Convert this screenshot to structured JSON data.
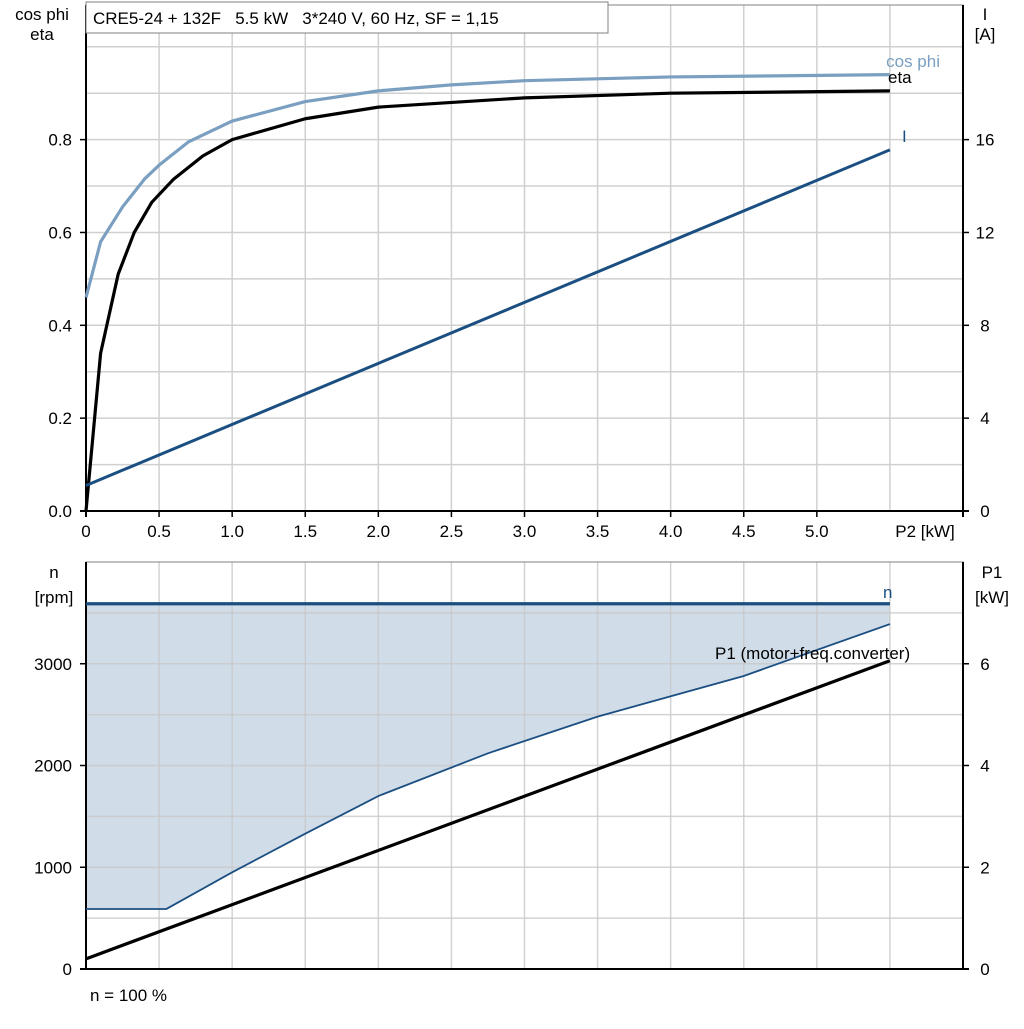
{
  "chart_data": [
    {
      "type": "line",
      "title": "CRE5-24 + 132F   5.5 kW   3*240 V, 60 Hz, SF = 1,15",
      "xlabel": "P2 [kW]",
      "ylabel": [
        "cos phi",
        "eta"
      ],
      "y2label": [
        "I",
        "[A]"
      ],
      "xlim": [
        0,
        6
      ],
      "ylim": [
        0,
        1.09
      ],
      "y2lim": [
        0,
        21.8
      ],
      "grid": true,
      "xticks": [
        "0",
        "0.5",
        "1.0",
        "1.5",
        "2.0",
        "2.5",
        "3.0",
        "3.5",
        "4.0",
        "4.5",
        "5.0"
      ],
      "yticks": [
        "0.0",
        "0.2",
        "0.4",
        "0.6",
        "0.8"
      ],
      "y2ticks": [
        "0",
        "4",
        "8",
        "12",
        "16"
      ],
      "series": [
        {
          "name": "cos phi",
          "axis": "left",
          "color": "#7a9fc0",
          "x": [
            0,
            0.1,
            0.25,
            0.4,
            0.5,
            0.7,
            1.0,
            1.5,
            2.0,
            2.5,
            3.0,
            4.0,
            5.5
          ],
          "y": [
            0.46,
            0.58,
            0.655,
            0.715,
            0.745,
            0.795,
            0.84,
            0.882,
            0.905,
            0.918,
            0.927,
            0.935,
            0.94
          ]
        },
        {
          "name": "eta",
          "axis": "left",
          "color": "#000000",
          "x": [
            0,
            0.1,
            0.22,
            0.33,
            0.45,
            0.6,
            0.8,
            1.0,
            1.5,
            2.0,
            3.0,
            4.0,
            5.5
          ],
          "y": [
            0,
            0.34,
            0.51,
            0.6,
            0.665,
            0.715,
            0.765,
            0.8,
            0.845,
            0.87,
            0.89,
            0.9,
            0.905
          ]
        },
        {
          "name": "I",
          "axis": "right",
          "color": "#1b4f82",
          "x": [
            0,
            5.5
          ],
          "y": [
            1.1,
            15.56
          ]
        }
      ]
    },
    {
      "type": "area",
      "xlim": [
        0,
        6
      ],
      "ylabel": [
        "n",
        "[rpm]"
      ],
      "y2label": [
        "P1",
        "[kW]"
      ],
      "ylim": [
        0,
        4000
      ],
      "y2lim": [
        0,
        8
      ],
      "grid": true,
      "yticks": [
        "0",
        "1000",
        "2000",
        "3000"
      ],
      "y2ticks": [
        "0",
        "2",
        "4",
        "6"
      ],
      "footnote": "n = 100 %",
      "series": [
        {
          "name": "n",
          "axis": "left",
          "color": "#1b4f82",
          "x": [
            0,
            5.5
          ],
          "y": [
            3590,
            3590
          ]
        },
        {
          "name": "",
          "axis": "left",
          "color": "#1b4f82",
          "fill": "#d0dce8",
          "x": [
            0,
            0.55,
            1.0,
            1.5,
            2.0,
            2.75,
            3.5,
            4.5,
            5.5
          ],
          "y": [
            590,
            590,
            950,
            1330,
            1700,
            2120,
            2480,
            2880,
            3390
          ]
        },
        {
          "name": "P1 (motor+freq.converter)",
          "axis": "right",
          "color": "#000000",
          "x": [
            0,
            5.5
          ],
          "y": [
            0.2,
            6.06
          ]
        }
      ]
    }
  ]
}
